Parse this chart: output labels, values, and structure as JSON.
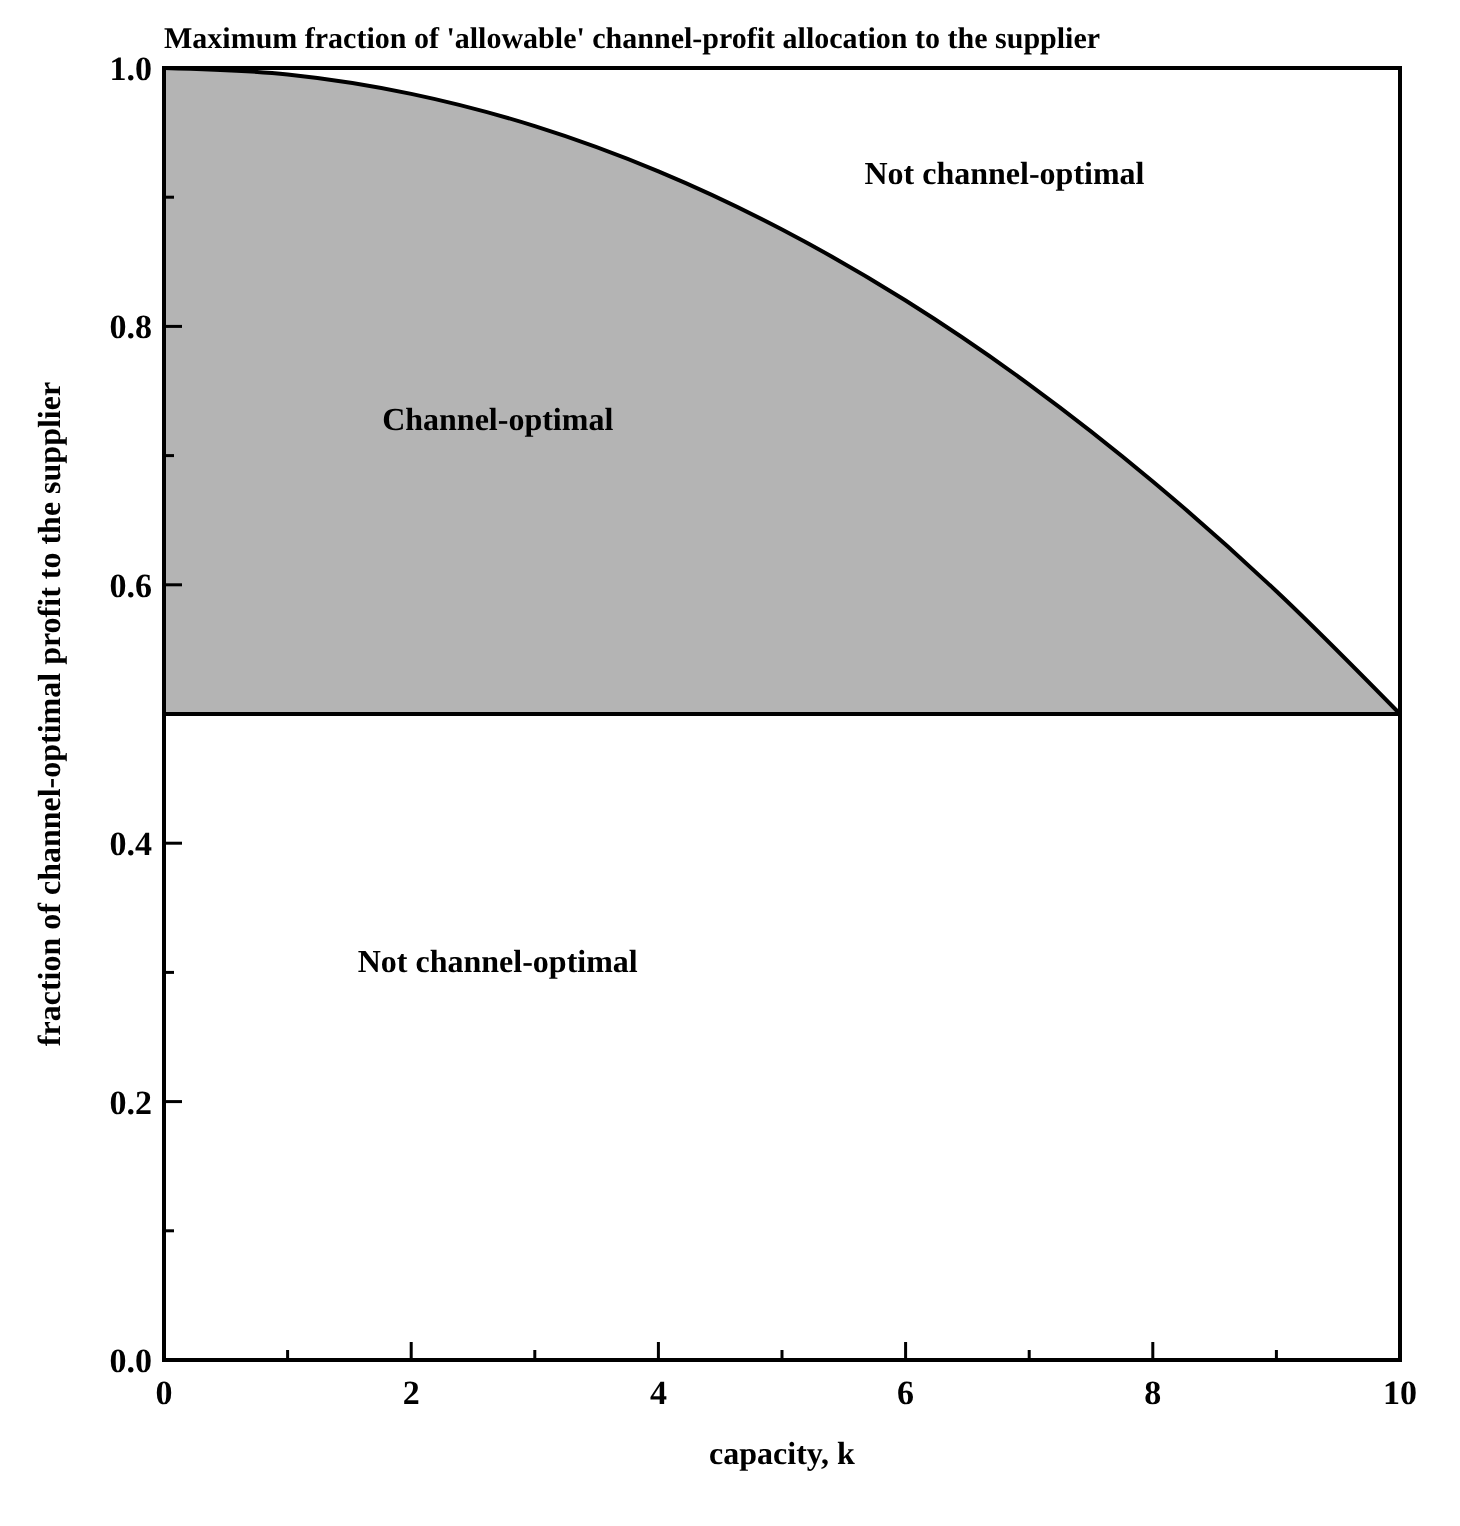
{
  "chart_data": {
    "type": "line",
    "title": "Maximum fraction of 'allowable' channel-profit allocation to the supplier",
    "xlabel": "capacity, k",
    "ylabel": "fraction of channel-optimal profit to the supplier",
    "x": [
      0,
      1,
      2,
      3,
      4,
      5,
      6,
      7,
      8,
      9,
      10
    ],
    "series": [
      {
        "color": "#000000",
        "values": [
          1.0,
          0.995,
          0.98,
          0.955,
          0.92,
          0.875,
          0.82,
          0.755,
          0.68,
          0.595,
          0.5
        ],
        "lower": [
          0.5,
          0.5,
          0.5,
          0.5,
          0.5,
          0.5,
          0.5,
          0.5,
          0.5,
          0.5,
          0.5
        ],
        "upper": [
          1.0,
          0.995,
          0.98,
          0.955,
          0.92,
          0.875,
          0.82,
          0.755,
          0.68,
          0.595,
          0.5
        ]
      }
    ],
    "ref_lines": [
      {
        "axis": "y",
        "value": 0.5,
        "color": "#000000"
      }
    ],
    "annotations": [
      "Not channel-optimal",
      "Channel-optimal",
      "Not channel-optimal"
    ],
    "xlim": [
      0,
      10
    ],
    "ylim": [
      0,
      1
    ],
    "xticks": [
      0,
      {
        "value": 1,
        "label": null
      },
      2,
      {
        "value": 3,
        "label": null
      },
      4,
      {
        "value": 5,
        "label": null
      },
      6,
      {
        "value": 7,
        "label": null
      },
      8,
      {
        "value": 9,
        "label": null
      },
      10
    ],
    "yticks": [
      {
        "value": 0,
        "label": "0.0"
      },
      {
        "value": 0.1,
        "label": null
      },
      0.2,
      {
        "value": 0.3,
        "label": null
      },
      0.4,
      {
        "value": 0.5,
        "label": null
      },
      0.6,
      {
        "value": 0.7,
        "label": null
      },
      0.8,
      {
        "value": 0.9,
        "label": null
      },
      {
        "value": 1,
        "label": "1.0"
      }
    ],
    "grid": false,
    "marker": "none",
    "line_style": "solid"
  }
}
